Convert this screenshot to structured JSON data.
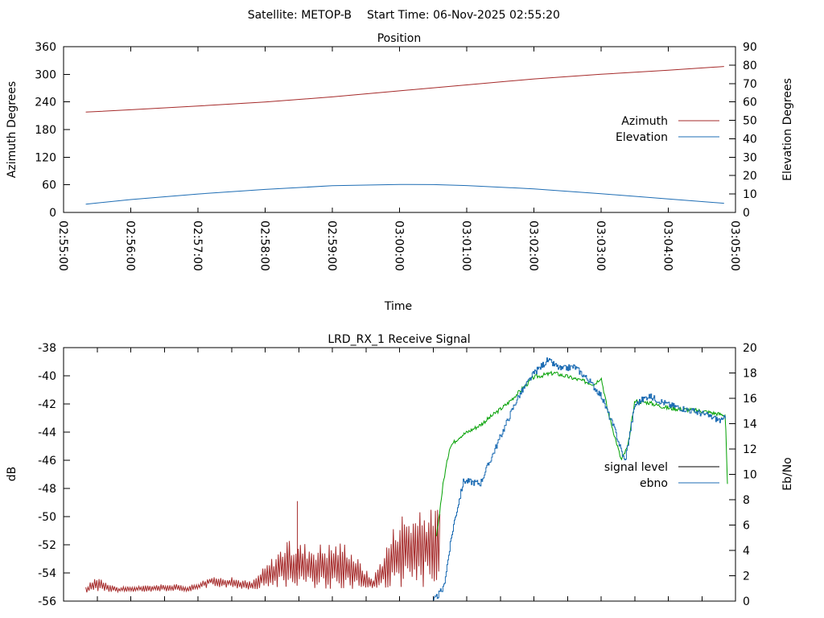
{
  "header": {
    "satellite": "Satellite: METOP-B",
    "start_time": "Start Time: 06-Nov-2025 02:55:20"
  },
  "chart_data": [
    {
      "type": "line",
      "title": "Position",
      "xlabel": "Time",
      "ylabel": "Azimuth Degrees",
      "y2label": "Elevation Degrees",
      "ylim": [
        0,
        360
      ],
      "y2lim": [
        0,
        90
      ],
      "yticks": [
        "0",
        "60",
        "120",
        "180",
        "240",
        "300",
        "360"
      ],
      "y2ticks": [
        "0",
        "10",
        "20",
        "30",
        "40",
        "50",
        "60",
        "70",
        "80",
        "90"
      ],
      "xticks": [
        "02:55:00",
        "02:56:00",
        "02:57:00",
        "02:58:00",
        "02:59:00",
        "03:00:00",
        "03:01:00",
        "03:02:00",
        "03:03:00",
        "03:04:00",
        "03:05:00"
      ],
      "xlim_minutes": [
        0,
        10
      ],
      "legend": "right",
      "series": [
        {
          "name": "Azimuth",
          "color": "#a52a2a",
          "axis": "left",
          "x": [
            0.33,
            1,
            2,
            3,
            4,
            5,
            6,
            7,
            8,
            9,
            9.83
          ],
          "y": [
            218,
            223,
            231,
            240,
            251,
            264,
            277,
            290,
            300,
            309,
            317
          ]
        },
        {
          "name": "Elevation",
          "color": "#1e6db4",
          "axis": "right",
          "x": [
            0.33,
            1,
            2,
            3,
            4,
            5,
            5.5,
            6,
            7,
            8,
            9,
            9.83
          ],
          "y": [
            4.5,
            7,
            10,
            12.5,
            14.5,
            15.2,
            15.1,
            14.6,
            12.8,
            10.2,
            7.3,
            5
          ]
        }
      ]
    },
    {
      "type": "line",
      "title": "LRD_RX_1 Receive Signal",
      "xlabel": "",
      "ylabel": "dB",
      "y2label": "Eb/No",
      "ylim": [
        -56,
        -38
      ],
      "y2lim": [
        0,
        20
      ],
      "yticks": [
        "-56",
        "-54",
        "-52",
        "-50",
        "-48",
        "-46",
        "-44",
        "-42",
        "-40",
        "-38"
      ],
      "y2ticks": [
        "0",
        "2",
        "4",
        "6",
        "8",
        "10",
        "12",
        "14",
        "16",
        "18",
        "20"
      ],
      "xlim_minutes": [
        0,
        10
      ],
      "legend": "right",
      "series": [
        {
          "name": "signal level",
          "color": "#000000",
          "legend_only": true,
          "axis": "left",
          "x": [],
          "y": []
        },
        {
          "name": "",
          "color": "#a52a2a",
          "axis": "left",
          "x": [
            0.33,
            0.5,
            0.8,
            1.5,
            1.9,
            2.2,
            2.5,
            2.8,
            3.3,
            3.8,
            4.2,
            4.6,
            5.0,
            5.3,
            5.6
          ],
          "y": [
            -55.2,
            -54.8,
            -55.2,
            -55.0,
            -55.2,
            -54.5,
            -54.7,
            -54.9,
            -53.5,
            -53.8,
            -53.5,
            -54.8,
            -52.7,
            -52.5,
            -51.2
          ],
          "y_high": [
            -55.0,
            -54.1,
            -55.0,
            -54.8,
            -54.8,
            -54.3,
            -54.3,
            -54.6,
            -51.7,
            -51.8,
            -51.7,
            -54.4,
            -49.5,
            -49.6,
            -49.2
          ],
          "y_low": [
            -55.4,
            -55.3,
            -55.4,
            -55.3,
            -55.3,
            -55.0,
            -55.1,
            -55.2,
            -55.0,
            -55.1,
            -55.2,
            -55.2,
            -55.1,
            -55.2,
            -54.5
          ]
        },
        {
          "name": "",
          "color": "#00a000",
          "axis": "left",
          "x": [
            5.55,
            5.65,
            5.75,
            5.9,
            6.2,
            6.6,
            7.0,
            7.3,
            7.6,
            7.9,
            8.0,
            8.1,
            8.3,
            8.4,
            8.5,
            8.7,
            9.0,
            9.5,
            9.85,
            9.88
          ],
          "y": [
            -51.5,
            -47.6,
            -45.0,
            -44.3,
            -43.5,
            -42.0,
            -40.1,
            -39.8,
            -40.2,
            -40.6,
            -40.1,
            -42.5,
            -46.0,
            -45.0,
            -41.8,
            -41.9,
            -42.3,
            -42.5,
            -42.8,
            -47.8
          ]
        },
        {
          "name": "ebno",
          "color": "#1e6db4",
          "axis": "right",
          "x": [
            5.5,
            5.65,
            5.8,
            5.95,
            6.2,
            6.5,
            6.75,
            7.0,
            7.2,
            7.4,
            7.6,
            7.8,
            8.0,
            8.2,
            8.35,
            8.5,
            8.7,
            9.0,
            9.5,
            9.8,
            9.85
          ],
          "y": [
            0,
            1,
            6,
            9.5,
            9.3,
            13,
            16,
            18,
            19,
            18.3,
            18.5,
            17.5,
            16.2,
            13.5,
            11,
            15.5,
            16.2,
            15.5,
            14.8,
            14.2,
            14.6
          ]
        }
      ]
    }
  ]
}
